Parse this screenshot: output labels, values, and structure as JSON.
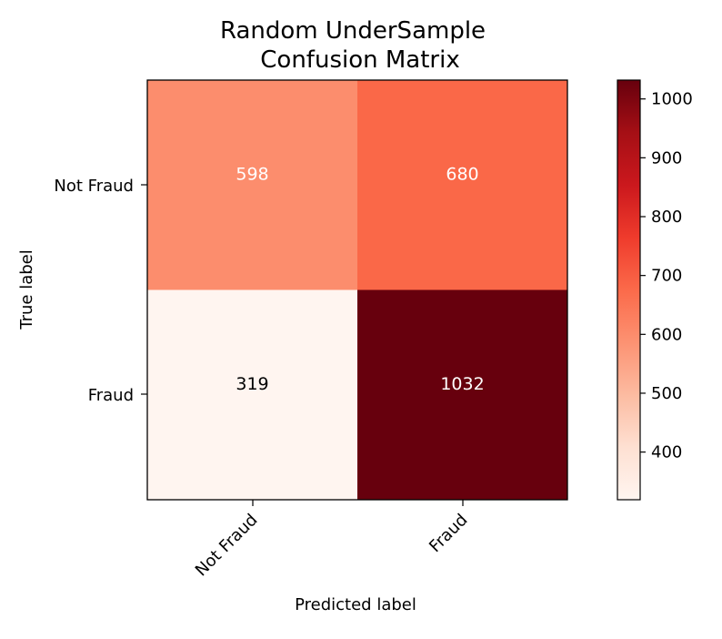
{
  "chart_data": {
    "type": "heatmap",
    "title_lines": [
      "Random UnderSample",
      "Confusion Matrix"
    ],
    "xlabel": "Predicted label",
    "ylabel": "True label",
    "x_categories": [
      "Not Fraud",
      "Fraud"
    ],
    "y_categories": [
      "Not Fraud",
      "Fraud"
    ],
    "values": [
      [
        598,
        680
      ],
      [
        319,
        1032
      ]
    ],
    "colormap": "Reds",
    "color_range": [
      319,
      1032
    ],
    "colorbar_ticks": [
      400,
      500,
      600,
      700,
      800,
      900,
      1000
    ],
    "colorbar_tick_labels": [
      "400",
      "500",
      "600",
      "700",
      "800",
      "900",
      "1000"
    ],
    "text_colors": {
      "light": "#ffffff",
      "dark": "#000000"
    }
  }
}
